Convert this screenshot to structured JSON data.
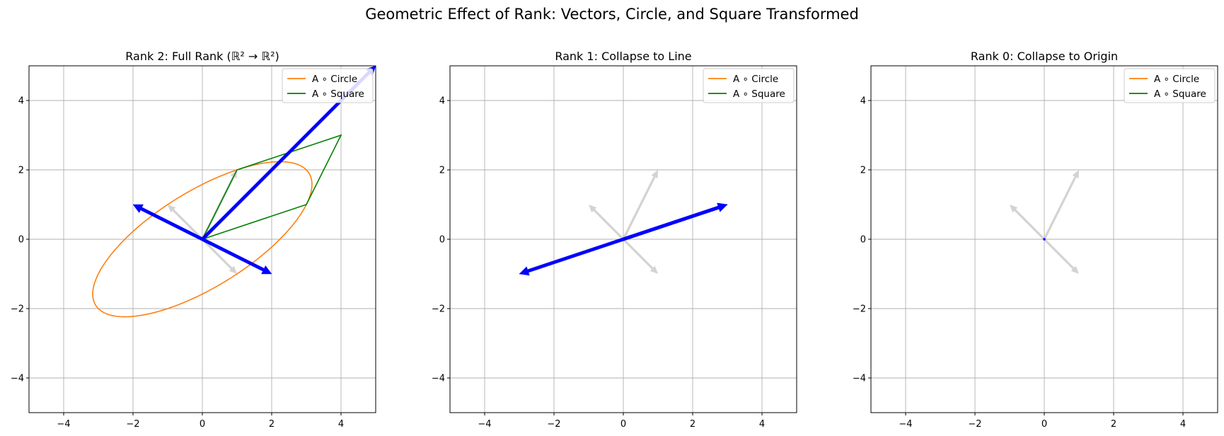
{
  "suptitle": "Geometric Effect of Rank: Vectors, Circle, and Square Transformed",
  "colors": {
    "circle": "#ff7f0e",
    "square": "#008000",
    "vector": "#0000ff",
    "original": "#d3d3d3",
    "grid": "#b0b0b0"
  },
  "chart_data": [
    {
      "type": "line",
      "title": "Rank 2: Full Rank (ℝ² → ℝ²)",
      "xlim": [
        -5,
        5
      ],
      "ylim": [
        -5,
        5
      ],
      "xticks": [
        -4,
        -2,
        0,
        2,
        4
      ],
      "yticks": [
        -4,
        -2,
        0,
        2,
        4
      ],
      "tick_labels": [
        "−4",
        "−2",
        "0",
        "2",
        "4"
      ],
      "grid": true,
      "legend": {
        "position": "top-right",
        "entries": [
          "A ∘ Circle",
          "A ∘ Square"
        ]
      },
      "matrix": [
        [
          3,
          1
        ],
        [
          1,
          2
        ]
      ],
      "original_vectors": [
        [
          1,
          2
        ],
        [
          -1,
          1
        ],
        [
          1,
          -1
        ]
      ],
      "transformed_vectors": [
        [
          5,
          5
        ],
        [
          -2,
          1
        ],
        [
          2,
          -1
        ]
      ],
      "series": [
        {
          "name": "A ∘ Circle",
          "shape": "unit circle mapped by matrix"
        },
        {
          "name": "A ∘ Square",
          "points": [
            [
              0,
              0
            ],
            [
              3,
              1
            ],
            [
              4,
              3
            ],
            [
              1,
              2
            ],
            [
              0,
              0
            ]
          ]
        }
      ]
    },
    {
      "type": "line",
      "title": "Rank 1: Collapse to Line",
      "xlim": [
        -5,
        5
      ],
      "ylim": [
        -5,
        5
      ],
      "xticks": [
        -4,
        -2,
        0,
        2,
        4
      ],
      "yticks": [
        -4,
        -2,
        0,
        2,
        4
      ],
      "tick_labels": [
        "−4",
        "−2",
        "0",
        "2",
        "4"
      ],
      "grid": true,
      "legend": {
        "position": "top-right",
        "entries": [
          "A ∘ Circle",
          "A ∘ Square"
        ]
      },
      "matrix": [
        [
          3,
          0
        ],
        [
          1,
          0
        ]
      ],
      "original_vectors": [
        [
          1,
          2
        ],
        [
          -1,
          1
        ],
        [
          1,
          -1
        ]
      ],
      "transformed_vectors": [
        [
          3,
          1
        ],
        [
          -3,
          -1
        ],
        [
          3,
          1
        ]
      ],
      "series": [
        {
          "name": "A ∘ Circle",
          "shape": "unit circle mapped by matrix"
        },
        {
          "name": "A ∘ Square",
          "points": [
            [
              0,
              0
            ],
            [
              3,
              1
            ],
            [
              3,
              1
            ],
            [
              0,
              0
            ],
            [
              0,
              0
            ]
          ]
        }
      ]
    },
    {
      "type": "line",
      "title": "Rank 0: Collapse to Origin",
      "xlim": [
        -5,
        5
      ],
      "ylim": [
        -5,
        5
      ],
      "xticks": [
        -4,
        -2,
        0,
        2,
        4
      ],
      "yticks": [
        -4,
        -2,
        0,
        2,
        4
      ],
      "tick_labels": [
        "−4",
        "−2",
        "0",
        "2",
        "4"
      ],
      "grid": true,
      "legend": {
        "position": "top-right",
        "entries": [
          "A ∘ Circle",
          "A ∘ Square"
        ]
      },
      "matrix": [
        [
          0,
          0
        ],
        [
          0,
          0
        ]
      ],
      "original_vectors": [
        [
          1,
          2
        ],
        [
          -1,
          1
        ],
        [
          1,
          -1
        ]
      ],
      "transformed_vectors": [
        [
          0,
          0
        ],
        [
          0,
          0
        ],
        [
          0,
          0
        ]
      ],
      "series": [
        {
          "name": "A ∘ Circle",
          "shape": "unit circle mapped by matrix"
        },
        {
          "name": "A ∘ Square",
          "points": [
            [
              0,
              0
            ],
            [
              0,
              0
            ],
            [
              0,
              0
            ],
            [
              0,
              0
            ],
            [
              0,
              0
            ]
          ]
        }
      ]
    }
  ]
}
